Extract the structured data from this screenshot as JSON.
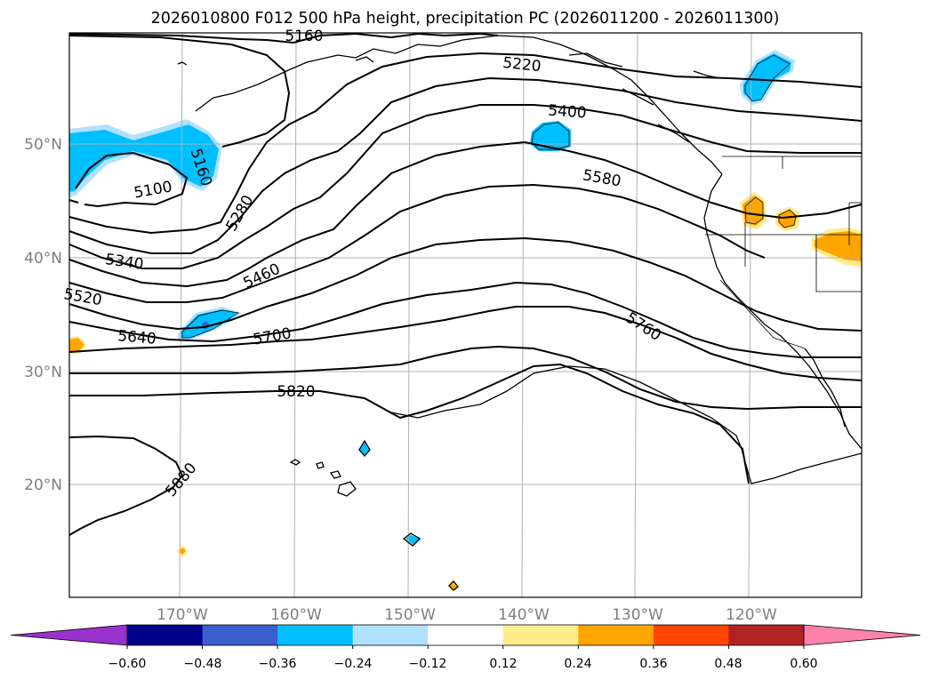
{
  "title": "2026010800 F012 500 hPa height, precipitation PC (2026011200 - 2026011300)",
  "map": {
    "lon_ticks": [
      "170°W",
      "160°W",
      "150°W",
      "140°W",
      "130°W",
      "120°W"
    ],
    "lat_ticks": [
      "50°N",
      "40°N",
      "30°N",
      "20°N"
    ],
    "gridlines": true,
    "contour_labels": [
      "5160",
      "5220",
      "5400",
      "5580",
      "5160",
      "5100",
      "5280",
      "5340",
      "5460",
      "5520",
      "5640",
      "5700",
      "5760",
      "5820",
      "5880"
    ]
  },
  "colorbar": {
    "ticks": [
      "−0.60",
      "−0.48",
      "−0.36",
      "−0.24",
      "−0.12",
      "0.12",
      "0.24",
      "0.36",
      "0.48",
      "0.60"
    ],
    "colors": [
      "#9932cc",
      "#00008b",
      "#3a5fcd",
      "#00bfff",
      "#b0e2ff",
      "#ffffff",
      "#ffec8b",
      "#ffa500",
      "#ff4500",
      "#b22222",
      "#ff82ab"
    ]
  }
}
